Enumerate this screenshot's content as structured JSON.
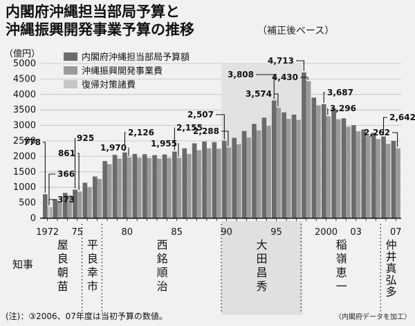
{
  "title_line1": "内閣府沖縄担当部局予算と",
  "title_line2": "沖縄振興開発事業予算の推移",
  "subtitle": "（補正後ベース）",
  "unit": "（億円）",
  "legend": [
    {
      "label": "内閣府沖縄担当部局予算額",
      "color": "#6a6a6a"
    },
    {
      "label": "沖縄振興開発事業費",
      "color": "#9a9a9a"
    },
    {
      "label": "復帰対策諸費",
      "color": "#c6c6c6"
    }
  ],
  "governor_label": "知事",
  "governors": [
    {
      "name": "屋良朝苗",
      "start": 1972,
      "end": 1975,
      "shaded": false
    },
    {
      "name": "平良幸市",
      "start": 1976,
      "end": 1977,
      "shaded": false
    },
    {
      "name": "西銘順治",
      "start": 1978,
      "end": 1989,
      "shaded": false
    },
    {
      "name": "大田昌秀",
      "start": 1990,
      "end": 1997,
      "shaded": true
    },
    {
      "name": "稲嶺恵一",
      "start": 1998,
      "end": 2005,
      "shaded": false
    },
    {
      "name": "仲井真弘多",
      "start": 2006,
      "end": 2007,
      "shaded": false
    }
  ],
  "note": "(注)：③2006、07年度は当初予算の数値。",
  "source": "〈内閣府データを加工〉",
  "chart_data": {
    "type": "bar",
    "title": "内閣府沖縄担当部局予算と沖縄振興開発事業予算の推移",
    "subtitle": "（補正後ベース）",
    "ylabel": "（億円）",
    "ylim": [
      0,
      5000
    ],
    "yticks": [
      0,
      500,
      1000,
      1500,
      2000,
      2500,
      3000,
      3500,
      4000,
      4500,
      5000
    ],
    "x_tick_labels": [
      {
        "year": 1972,
        "label": "1972"
      },
      {
        "year": 1975,
        "label": "75"
      },
      {
        "year": 1980,
        "label": "80"
      },
      {
        "year": 1985,
        "label": "85"
      },
      {
        "year": 1990,
        "label": "90"
      },
      {
        "year": 1995,
        "label": "95"
      },
      {
        "year": 2000,
        "label": "2000"
      },
      {
        "year": 2003,
        "label": "03"
      },
      {
        "year": 2007,
        "label": "07"
      }
    ],
    "categories": [
      1972,
      1973,
      1974,
      1975,
      1976,
      1977,
      1978,
      1979,
      1980,
      1981,
      1982,
      1983,
      1984,
      1985,
      1986,
      1987,
      1988,
      1989,
      1990,
      1991,
      1992,
      1993,
      1994,
      1995,
      1996,
      1997,
      1998,
      1999,
      2000,
      2001,
      2002,
      2003,
      2004,
      2005,
      2006,
      2007
    ],
    "series": [
      {
        "name": "内閣府沖縄担当部局予算額",
        "values": [
          778,
          620,
          820,
          925,
          1150,
          1350,
          1850,
          2050,
          2126,
          2080,
          2070,
          2040,
          2060,
          2155,
          2260,
          2420,
          2480,
          2460,
          2507,
          2600,
          2820,
          3050,
          3250,
          3808,
          3420,
          3350,
          4713,
          3900,
          3687,
          3550,
          3230,
          3010,
          2870,
          2760,
          2642,
          2500
        ]
      },
      {
        "name": "沖縄振興開発事業費",
        "values": [
          366,
          530,
          740,
          861,
          1000,
          1270,
          1750,
          1930,
          1970,
          1960,
          1950,
          1930,
          1950,
          1955,
          2080,
          2200,
          2260,
          2250,
          2288,
          2390,
          2610,
          2840,
          2990,
          3574,
          3210,
          3180,
          4430,
          3650,
          3296,
          3200,
          2960,
          2810,
          2660,
          2560,
          2410,
          2262
        ]
      },
      {
        "name": "復帰対策諸費",
        "values": [
          373,
          null,
          null,
          null,
          null,
          null,
          null,
          null,
          null,
          null,
          null,
          null,
          null,
          null,
          null,
          null,
          null,
          null,
          null,
          null,
          null,
          null,
          null,
          null,
          null,
          null,
          null,
          null,
          null,
          null,
          null,
          null,
          null,
          null,
          null,
          null
        ]
      }
    ],
    "annotations": [
      {
        "year": 1972,
        "series": 0,
        "label": "778"
      },
      {
        "year": 1972,
        "series": 2,
        "label": "373"
      },
      {
        "year": 1972,
        "series": 1,
        "label": "366"
      },
      {
        "year": 1975,
        "series": 0,
        "label": "925"
      },
      {
        "year": 1975,
        "series": 1,
        "label": "861"
      },
      {
        "year": 1980,
        "series": 0,
        "label": "2,126"
      },
      {
        "year": 1980,
        "series": 1,
        "label": "1,970"
      },
      {
        "year": 1985,
        "series": 0,
        "label": "2,155"
      },
      {
        "year": 1985,
        "series": 1,
        "label": "1,955"
      },
      {
        "year": 1990,
        "series": 0,
        "label": "2,507"
      },
      {
        "year": 1990,
        "series": 1,
        "label": "2,288"
      },
      {
        "year": 1995,
        "series": 0,
        "label": "3,808"
      },
      {
        "year": 1995,
        "series": 1,
        "label": "3,574"
      },
      {
        "year": 1998,
        "series": 0,
        "label": "4,713"
      },
      {
        "year": 1998,
        "series": 1,
        "label": "4,430"
      },
      {
        "year": 2000,
        "series": 0,
        "label": "3,687"
      },
      {
        "year": 2000,
        "series": 1,
        "label": "3,296"
      },
      {
        "year": 2006,
        "series": 0,
        "label": "2,642"
      },
      {
        "year": 2007,
        "series": 1,
        "label": "2,262"
      }
    ]
  }
}
